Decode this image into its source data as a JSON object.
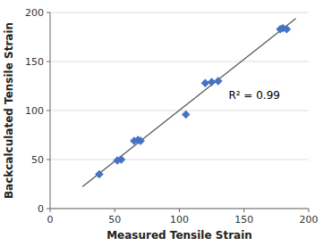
{
  "chart_data": {
    "type": "scatter",
    "x_label": "Measured Tensile Strain",
    "y_label": "Backcalculated Tensile Strain",
    "series": [
      {
        "type": "scatter",
        "color": "#4472c4",
        "marker": "diamond",
        "x": [
          38,
          52,
          55,
          65,
          68,
          70,
          105,
          120,
          125,
          130,
          178,
          180,
          183
        ],
        "values": [
          35,
          49,
          50,
          69,
          70,
          69,
          96,
          128,
          129,
          130,
          183,
          184,
          183
        ]
      },
      {
        "type": "line",
        "color": "#595959",
        "x": [
          25,
          190
        ],
        "values": [
          22.2915,
          193.8046
        ]
      }
    ],
    "annotations": [
      {
        "text": "R² = 0.99",
        "x": 138,
        "y": 112
      }
    ],
    "xlim": [
      0,
      200
    ],
    "ylim": [
      0,
      200
    ],
    "xticks": [
      0,
      50,
      100,
      150,
      200
    ],
    "yticks": [
      0,
      50,
      100,
      150,
      200
    ],
    "grid": "y"
  }
}
